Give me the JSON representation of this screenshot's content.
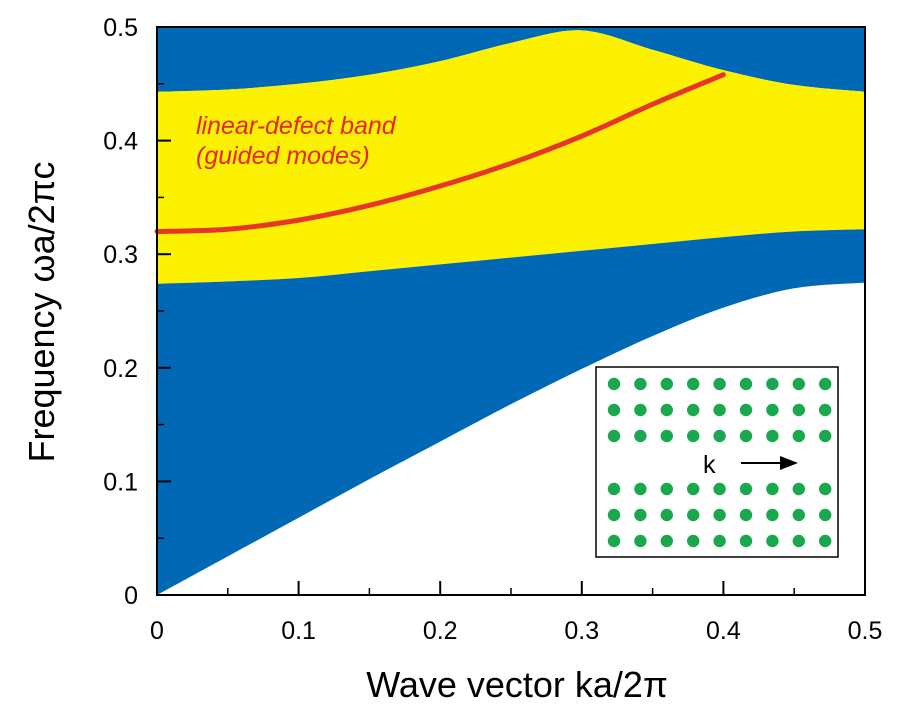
{
  "chart_data": {
    "type": "area",
    "xlabel": "Wave vector  ka/2π",
    "ylabel": "Frequency  ωa/2πc",
    "xlim": [
      0,
      0.5
    ],
    "ylim": [
      0,
      0.5
    ],
    "x_ticks": [
      "0",
      "0.1",
      "0.2",
      "0.3",
      "0.4",
      "0.5"
    ],
    "y_ticks": [
      "0",
      "0.1",
      "0.2",
      "0.3",
      "0.4",
      "0.5"
    ],
    "x_tick_values": [
      0,
      0.1,
      0.2,
      0.3,
      0.4,
      0.5
    ],
    "y_tick_values": [
      0,
      0.1,
      0.2,
      0.3,
      0.4,
      0.5
    ],
    "x_minor_ticks": [
      0.05,
      0.15,
      0.25,
      0.35,
      0.45
    ],
    "y_minor_ticks": [
      0.05,
      0.15,
      0.25,
      0.35,
      0.45
    ],
    "grid": false,
    "colors": {
      "bulk_bands": "#0068b5",
      "band_gap": "#fbf100",
      "defect_band": "#e8352a",
      "annotation": "#e8252a",
      "lattice_rods": "#1aa84f"
    },
    "regions": {
      "bulk_band_lower": {
        "x": [
          0,
          0.05,
          0.1,
          0.15,
          0.2,
          0.25,
          0.3,
          0.35,
          0.4,
          0.45,
          0.5
        ],
        "y_low": [
          0,
          0.034,
          0.068,
          0.102,
          0.135,
          0.168,
          0.199,
          0.228,
          0.253,
          0.27,
          0.275
        ],
        "y_high": [
          0.274,
          0.276,
          0.279,
          0.285,
          0.291,
          0.297,
          0.303,
          0.309,
          0.315,
          0.32,
          0.322
        ]
      },
      "band_gap": {
        "x": [
          0,
          0.05,
          0.1,
          0.15,
          0.2,
          0.25,
          0.3,
          0.35,
          0.4,
          0.45,
          0.5
        ],
        "y_low": [
          0.274,
          0.276,
          0.279,
          0.285,
          0.291,
          0.297,
          0.303,
          0.309,
          0.315,
          0.32,
          0.322
        ],
        "y_high": [
          0.443,
          0.445,
          0.45,
          0.458,
          0.47,
          0.486,
          0.497,
          0.48,
          0.462,
          0.449,
          0.443
        ]
      },
      "bulk_band_upper": {
        "x": [
          0,
          0.05,
          0.1,
          0.15,
          0.2,
          0.25,
          0.3,
          0.35,
          0.4,
          0.45,
          0.5
        ],
        "y_low": [
          0.443,
          0.445,
          0.45,
          0.458,
          0.47,
          0.486,
          0.497,
          0.48,
          0.462,
          0.449,
          0.443
        ],
        "y_high": [
          0.5,
          0.5,
          0.5,
          0.5,
          0.5,
          0.5,
          0.5,
          0.5,
          0.5,
          0.5,
          0.5
        ]
      }
    },
    "series": [
      {
        "name": "linear-defect band",
        "type": "line",
        "x": [
          0,
          0.05,
          0.1,
          0.15,
          0.2,
          0.25,
          0.3,
          0.35,
          0.4
        ],
        "y": [
          0.32,
          0.322,
          0.33,
          0.343,
          0.36,
          0.38,
          0.404,
          0.432,
          0.458
        ]
      }
    ],
    "annotations": [
      {
        "text": "linear-defect band"
      },
      {
        "text": "(guided modes)"
      }
    ]
  },
  "inset": {
    "label": "k",
    "rows_top": 3,
    "rows_bottom": 3,
    "columns": 9
  }
}
